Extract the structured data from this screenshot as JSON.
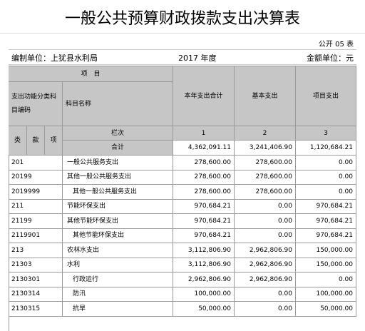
{
  "title": "一般公共预算财政拨款支出决算表",
  "form_no": "公开 05 表",
  "unit": "编制单位：上犹县水利局",
  "year": "2017 年度",
  "currency": "金额单位：元",
  "table": {
    "header": {
      "item": "项　目",
      "code_group": "支出功能分类科目编码",
      "name": "科目名称",
      "total": "本年支出合计",
      "basic": "基本支出",
      "project": "项目支出",
      "col_no": "栏次",
      "col_total": "1",
      "col_basic": "2",
      "col_project": "3",
      "lei": "类",
      "kuan": "款",
      "xiang": "项",
      "sum": "合计",
      "sum_total": "4,362,091.11",
      "sum_basic": "3,241,406.90",
      "sum_project": "1,120,684.21"
    },
    "rows": [
      [
        "201",
        "一般公共服务支出",
        "278,600.00",
        "278,600.00",
        "0.00"
      ],
      [
        "20199",
        "其他一般公共服务支出",
        "278,600.00",
        "278,600.00",
        "0.00"
      ],
      [
        "2019999",
        "其他一般公共服务支出",
        "278,600.00",
        "278,600.00",
        "0.00"
      ],
      [
        "211",
        "节能环保支出",
        "970,684.21",
        "0.00",
        "970,684.21"
      ],
      [
        "21199",
        "其他节能环保支出",
        "970,684.21",
        "0.00",
        "970,684.21"
      ],
      [
        "2119901",
        "其他节能环保支出",
        "970,684.21",
        "0.00",
        "970,684.21"
      ],
      [
        "213",
        "农林水支出",
        "3,112,806.90",
        "2,962,806.90",
        "150,000.00"
      ],
      [
        "21303",
        "水利",
        "3,112,806.90",
        "2,962,806.90",
        "150,000.00"
      ],
      [
        "2130301",
        "行政运行",
        "2,962,806.90",
        "2,962,806.90",
        "0.00"
      ],
      [
        "2130314",
        "防汛",
        "100,000.00",
        "0.00",
        "100,000.00"
      ],
      [
        "2130315",
        "抗旱",
        "50,000.00",
        "0.00",
        "50,000.00"
      ]
    ]
  }
}
